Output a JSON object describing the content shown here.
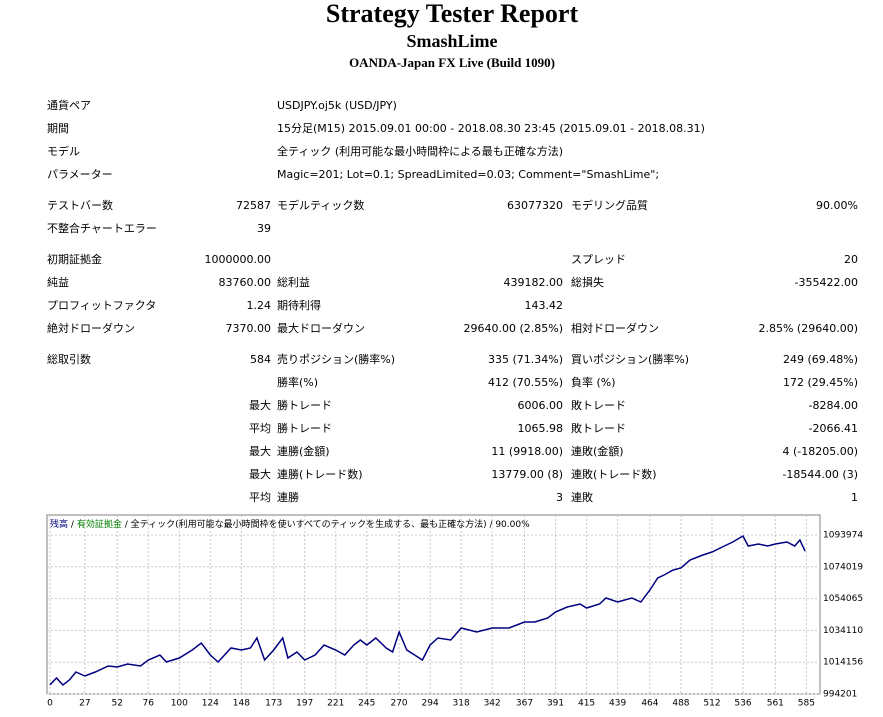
{
  "header": {
    "title": "Strategy Tester Report",
    "expert": "SmashLime",
    "server": "OANDA-Japan FX Live (Build 1090)"
  },
  "sections": [
    [
      [
        "通貨ペア",
        "USDJPY.oj5k (USD/JPY)"
      ],
      [
        "期間",
        "15分足(M15) 2015.09.01 00:00 - 2018.08.30 23:45 (2015.09.01 - 2018.08.31)"
      ],
      [
        "モデル",
        "全ティック (利用可能な最小時間枠による最も正確な方法)"
      ],
      [
        "パラメーター",
        "Magic=201; Lot=0.1; SpreadLimited=0.03; Comment=\"SmashLime\";"
      ]
    ],
    [
      [
        "テストバー数",
        "72587",
        "モデルティック数",
        "63077320",
        "モデリング品質",
        "90.00%"
      ],
      [
        "不整合チャートエラー",
        "39",
        null,
        null,
        null,
        null
      ]
    ],
    [
      [
        "初期証拠金",
        "1000000.00",
        null,
        null,
        "スプレッド",
        "20"
      ],
      [
        "純益",
        "83760.00",
        "総利益",
        "439182.00",
        "総損失",
        "-355422.00"
      ],
      [
        "プロフィットファクタ",
        "1.24",
        "期待利得",
        "143.42",
        null,
        null
      ],
      [
        "絶対ドローダウン",
        "7370.00",
        "最大ドローダウン",
        "29640.00 (2.85%)",
        "相対ドローダウン",
        "2.85% (29640.00)"
      ]
    ],
    [
      [
        "総取引数",
        "584",
        "売りポジション(勝率%)",
        "335 (71.34%)",
        "買いポジション(勝率%)",
        "249 (69.48%)"
      ],
      [
        null,
        null,
        "勝率(%)",
        "412 (70.55%)",
        "負率 (%)",
        "172 (29.45%)"
      ],
      [
        null,
        "最大",
        "勝トレード",
        "6006.00",
        "敗トレード",
        "-8284.00"
      ],
      [
        null,
        "平均",
        "勝トレード",
        "1065.98",
        "敗トレード",
        "-2066.41"
      ],
      [
        null,
        "最大",
        "連勝(金額)",
        "11 (9918.00)",
        "連敗(金額)",
        "4 (-18205.00)"
      ],
      [
        null,
        "最大",
        "連勝(トレード数)",
        "13779.00 (8)",
        "連敗(トレード数)",
        "-18544.00 (3)"
      ],
      [
        null,
        "平均",
        "連勝",
        "3",
        "連敗",
        "1"
      ]
    ]
  ],
  "chart_data": {
    "type": "line",
    "legend_separator": "/",
    "equity_label": {
      "text": "有効証拠金",
      "color": "#008000"
    },
    "legend_note": "全ティック(利用可能な最小時間枠を使いすべてのティックを生成する、最も正確な方法) / 90.00%",
    "series": [
      {
        "name": "残高",
        "color": "#000080",
        "x": [
          0,
          5,
          10,
          15,
          20,
          27,
          35,
          45,
          52,
          60,
          70,
          76,
          85,
          90,
          100,
          110,
          117,
          124,
          130,
          140,
          148,
          155,
          160,
          166,
          173,
          180,
          184,
          191,
          197,
          205,
          212,
          221,
          228,
          235,
          240,
          245,
          252,
          260,
          265,
          270,
          276,
          282,
          288,
          294,
          300,
          310,
          318,
          330,
          342,
          355,
          367,
          375,
          385,
          391,
          400,
          410,
          415,
          425,
          430,
          439,
          450,
          457,
          464,
          470,
          475,
          482,
          488,
          495,
          505,
          512,
          520,
          528,
          536,
          540,
          548,
          555,
          561,
          570,
          576,
          580,
          584
        ],
        "values": [
          1000000,
          1004240,
          999850,
          1002990,
          1008010,
          1005500,
          1008010,
          1011770,
          1011140,
          1013030,
          1011770,
          1015540,
          1018670,
          1014280,
          1016790,
          1021810,
          1026200,
          1018670,
          1014280,
          1023070,
          1021810,
          1023070,
          1029340,
          1015540,
          1021810,
          1029340,
          1016790,
          1020560,
          1015540,
          1018670,
          1024950,
          1021810,
          1018670,
          1024950,
          1028090,
          1024950,
          1029340,
          1023070,
          1020560,
          1033110,
          1021810,
          1018670,
          1015540,
          1024950,
          1029340,
          1028090,
          1035620,
          1033110,
          1035620,
          1035620,
          1039380,
          1039380,
          1041890,
          1045660,
          1048790,
          1050680,
          1048170,
          1050680,
          1054440,
          1051930,
          1054440,
          1051930,
          1059460,
          1066990,
          1068870,
          1072010,
          1073270,
          1078290,
          1081420,
          1083310,
          1086440,
          1089580,
          1093350,
          1087070,
          1088330,
          1087070,
          1088330,
          1089580,
          1087070,
          1090840,
          1083760
        ]
      }
    ],
    "xlim": [
      0,
      594
    ],
    "xticks": [
      0,
      27,
      52,
      76,
      100,
      124,
      148,
      173,
      197,
      221,
      245,
      270,
      294,
      318,
      342,
      367,
      391,
      415,
      439,
      464,
      488,
      512,
      536,
      561,
      585
    ],
    "ylim": [
      994201,
      1106500
    ],
    "yticks": [
      994201,
      1014156,
      1034110,
      1054065,
      1074019,
      1093974
    ],
    "grid": true
  }
}
